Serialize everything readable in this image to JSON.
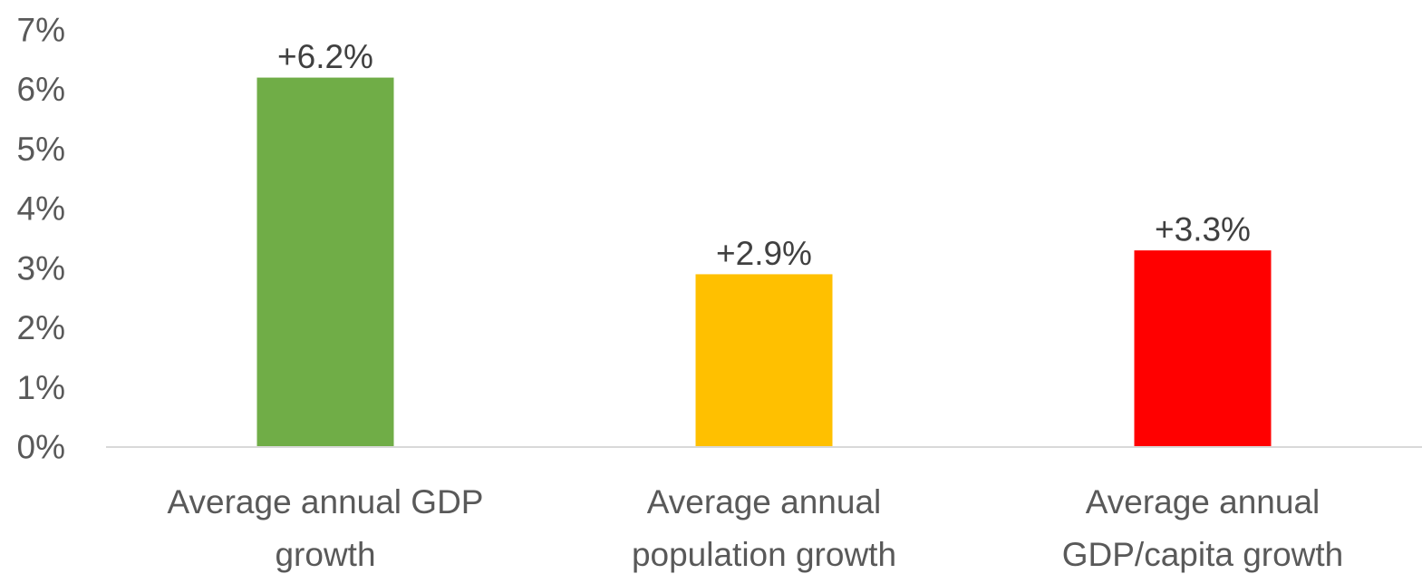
{
  "chart_data": {
    "type": "bar",
    "categories": [
      [
        "Average annual GDP",
        "growth"
      ],
      [
        "Average annual",
        "population growth"
      ],
      [
        "Average annual",
        "GDP/capita growth"
      ]
    ],
    "values": [
      6.2,
      2.9,
      3.3
    ],
    "data_labels": [
      "+6.2%",
      "+2.9%",
      "+3.3%"
    ],
    "bar_colors": [
      "#70ad47",
      "#ffc000",
      "#ff0000"
    ],
    "y_ticks": [
      "0%",
      "1%",
      "2%",
      "3%",
      "4%",
      "5%",
      "6%",
      "7%"
    ],
    "ylim": [
      0,
      7
    ],
    "grid": false,
    "legend": "none"
  }
}
